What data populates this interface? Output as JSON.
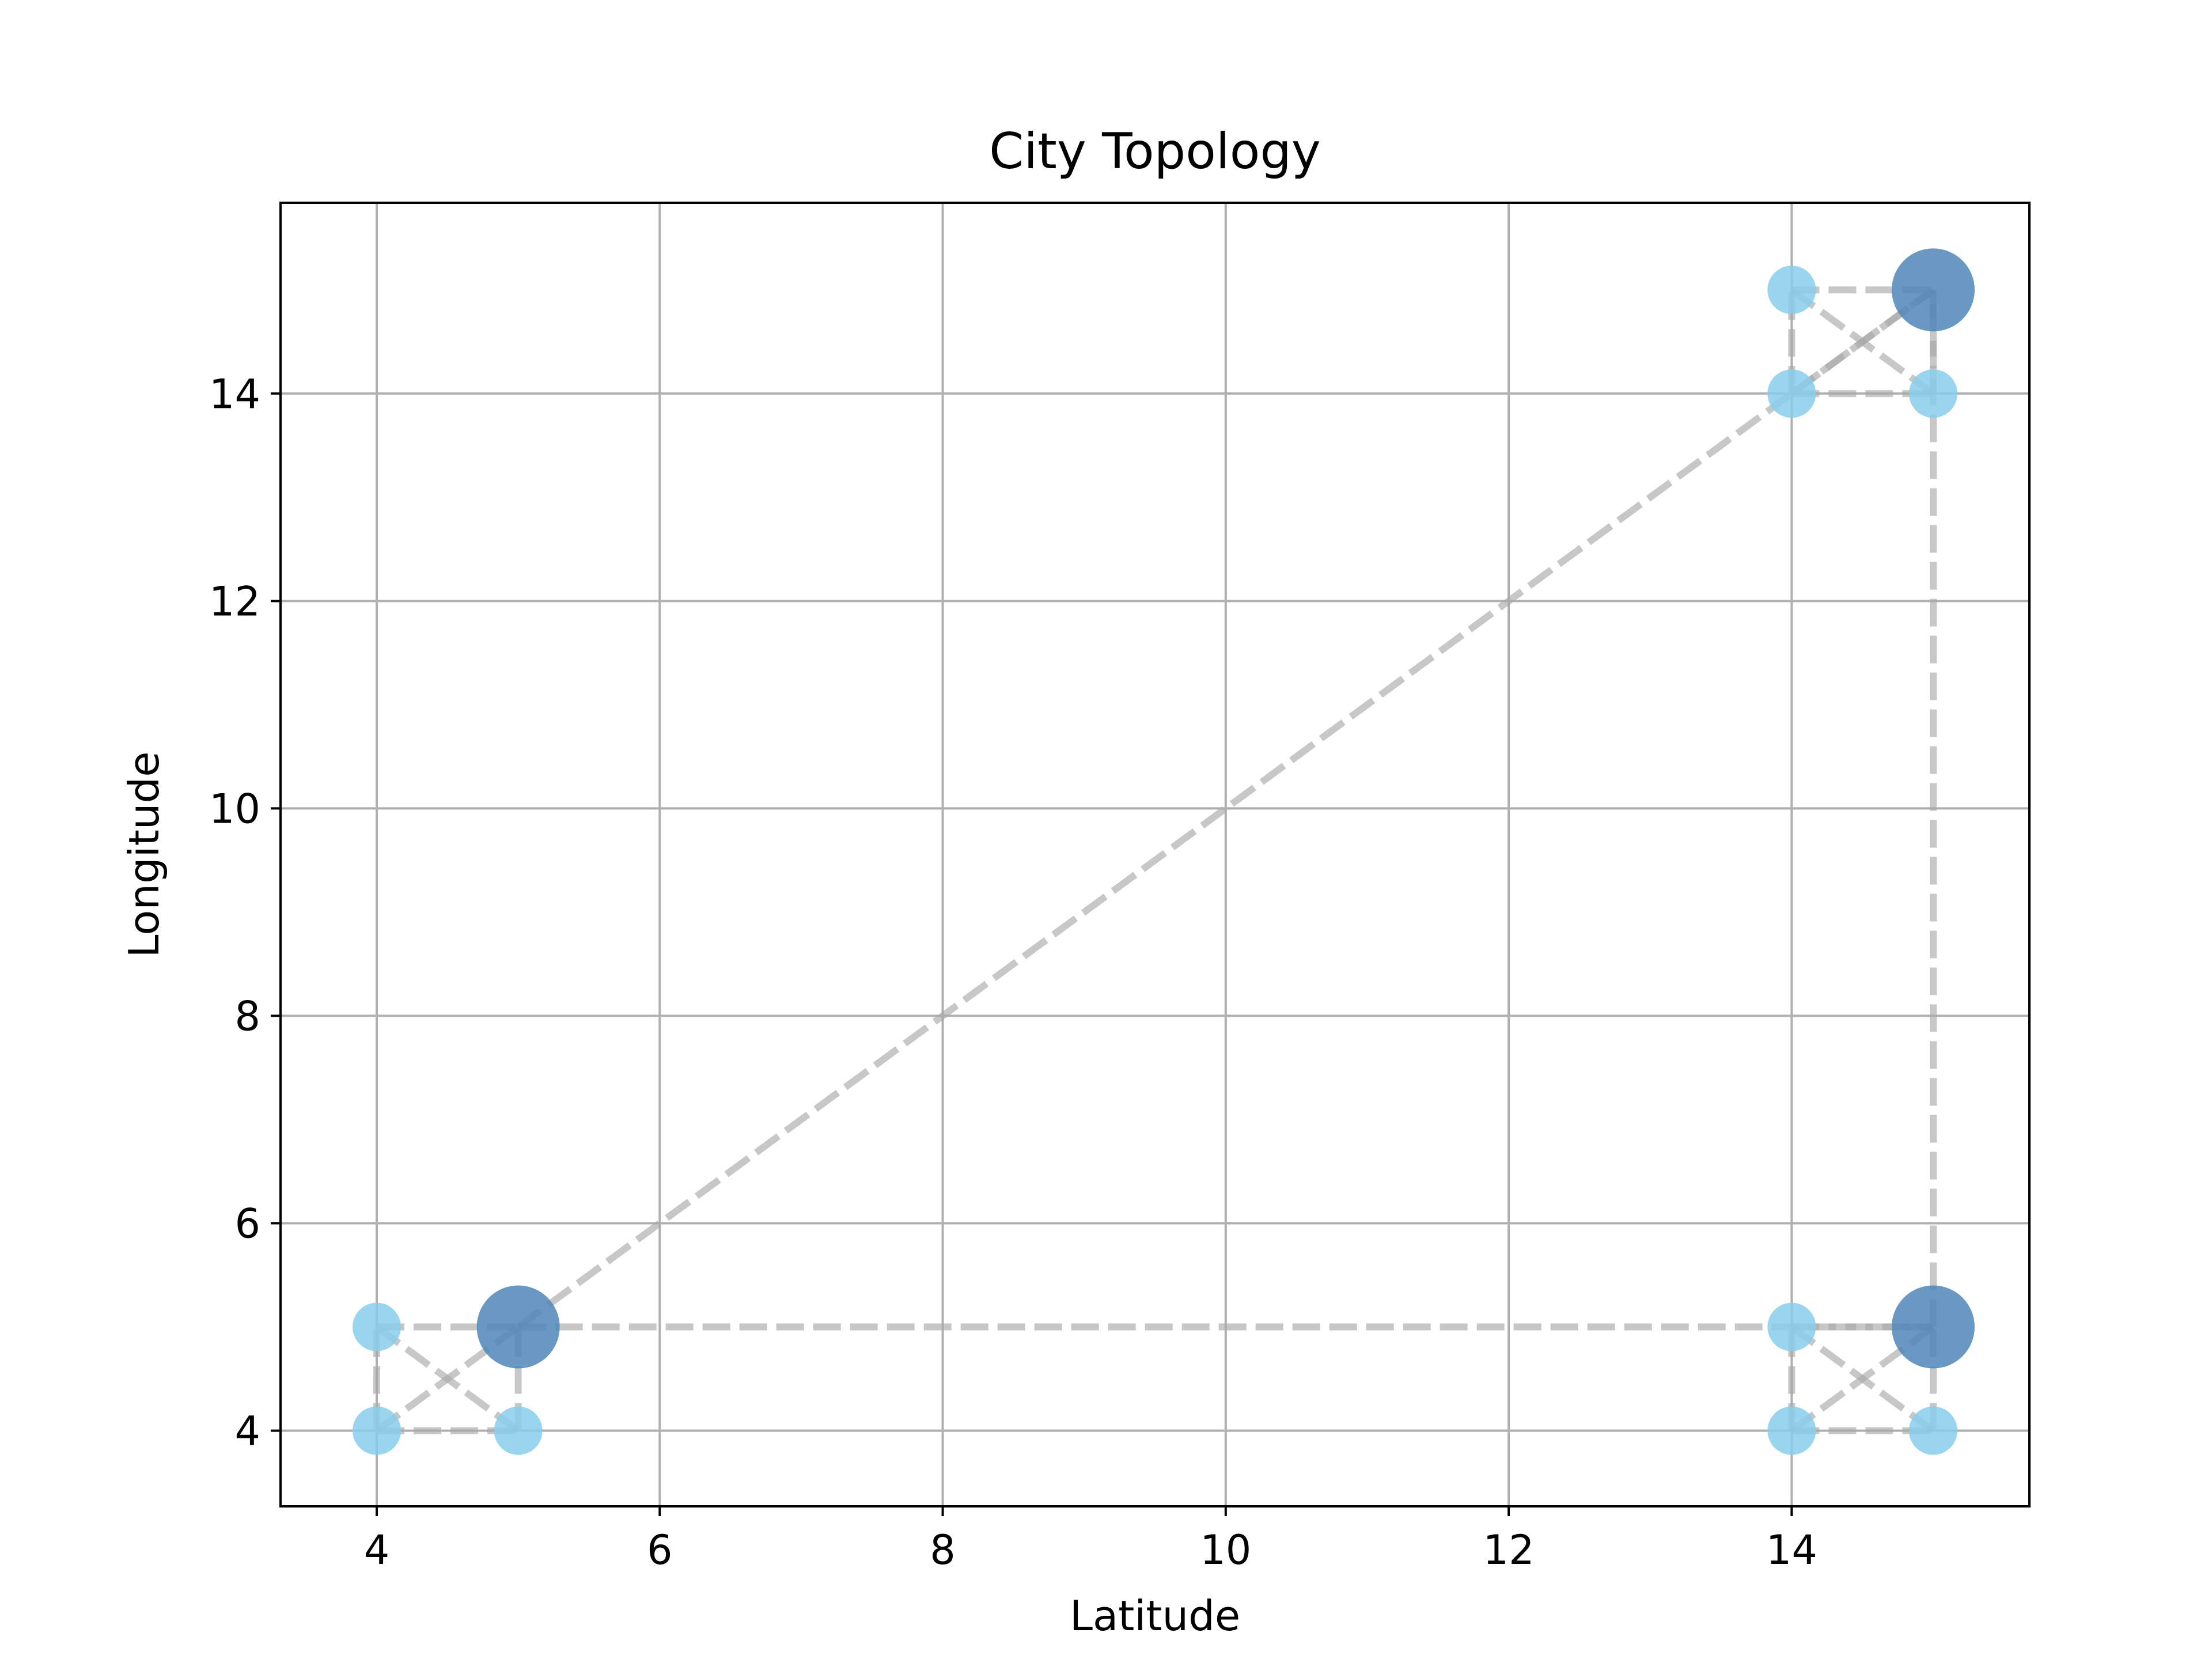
{
  "chart_data": {
    "type": "scatter",
    "title": "City Topology",
    "xlabel": "Latitude",
    "ylabel": "Longitude",
    "xlim": [
      3.32,
      15.68
    ],
    "ylim": [
      3.27,
      15.84
    ],
    "xticks": [
      4,
      6,
      8,
      10,
      12,
      14
    ],
    "yticks": [
      4,
      6,
      8,
      10,
      12,
      14
    ],
    "grid": true,
    "legend": "none",
    "colors": {
      "hub": "#4f86b9",
      "node": "#87ceeb",
      "edge": "#a9a9a9",
      "grid": "#b0b0b0"
    },
    "series": [
      {
        "role": "node",
        "points": [
          [
            4,
            4
          ],
          [
            4,
            5
          ],
          [
            5,
            4
          ],
          [
            14,
            4
          ],
          [
            14,
            5
          ],
          [
            15,
            4
          ],
          [
            14,
            14
          ],
          [
            14,
            15
          ],
          [
            15,
            14
          ]
        ]
      },
      {
        "role": "hub",
        "points": [
          [
            5,
            5
          ],
          [
            15,
            5
          ],
          [
            15,
            15
          ]
        ]
      }
    ],
    "edges": [
      [
        [
          5,
          5
        ],
        [
          15,
          15
        ]
      ],
      [
        [
          5,
          5
        ],
        [
          15,
          5
        ]
      ],
      [
        [
          15,
          5
        ],
        [
          15,
          15
        ]
      ],
      [
        [
          4,
          4
        ],
        [
          5,
          4
        ]
      ],
      [
        [
          4,
          5
        ],
        [
          5,
          5
        ]
      ],
      [
        [
          4,
          4
        ],
        [
          4,
          5
        ]
      ],
      [
        [
          5,
          4
        ],
        [
          5,
          5
        ]
      ],
      [
        [
          4,
          4
        ],
        [
          5,
          5
        ]
      ],
      [
        [
          4,
          5
        ],
        [
          5,
          4
        ]
      ],
      [
        [
          14,
          4
        ],
        [
          15,
          4
        ]
      ],
      [
        [
          14,
          5
        ],
        [
          15,
          5
        ]
      ],
      [
        [
          14,
          4
        ],
        [
          14,
          5
        ]
      ],
      [
        [
          15,
          4
        ],
        [
          15,
          5
        ]
      ],
      [
        [
          14,
          4
        ],
        [
          15,
          5
        ]
      ],
      [
        [
          14,
          5
        ],
        [
          15,
          4
        ]
      ],
      [
        [
          14,
          14
        ],
        [
          15,
          14
        ]
      ],
      [
        [
          14,
          15
        ],
        [
          15,
          15
        ]
      ],
      [
        [
          14,
          14
        ],
        [
          14,
          15
        ]
      ],
      [
        [
          15,
          14
        ],
        [
          15,
          15
        ]
      ],
      [
        [
          14,
          14
        ],
        [
          15,
          15
        ]
      ],
      [
        [
          14,
          15
        ],
        [
          15,
          14
        ]
      ]
    ]
  }
}
